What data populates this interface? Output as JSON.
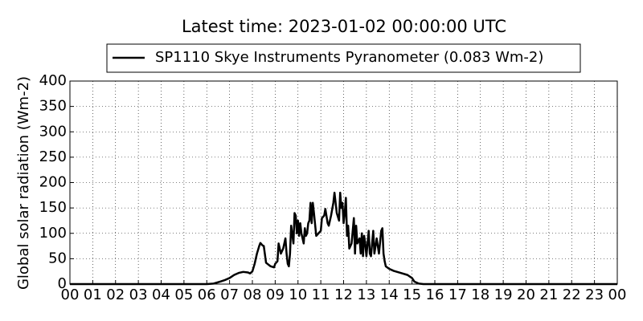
{
  "chart_data": {
    "type": "line",
    "title": "Latest time: 2023-01-02 00:00:00 UTC",
    "ylabel": "Global solar radiation (Wm-2)",
    "legend": "top",
    "grid": true,
    "series": [
      {
        "name": "SP1110 Skye Instruments Pyranometer (0.083 Wm-2)",
        "color": "#000000",
        "x": [
          0,
          6.0,
          6.3,
          6.6,
          6.8,
          7.0,
          7.2,
          7.4,
          7.6,
          7.8,
          7.9,
          8.0,
          8.1,
          8.2,
          8.3,
          8.35,
          8.45,
          8.5,
          8.6,
          8.8,
          8.95,
          9.0,
          9.1,
          9.15,
          9.25,
          9.35,
          9.45,
          9.5,
          9.55,
          9.6,
          9.65,
          9.7,
          9.8,
          9.85,
          9.9,
          9.95,
          10.0,
          10.05,
          10.1,
          10.15,
          10.2,
          10.25,
          10.3,
          10.35,
          10.4,
          10.45,
          10.5,
          10.55,
          10.6,
          10.65,
          10.7,
          10.8,
          10.9,
          11.0,
          11.05,
          11.15,
          11.2,
          11.3,
          11.35,
          11.45,
          11.55,
          11.6,
          11.7,
          11.8,
          11.85,
          11.9,
          11.95,
          12.0,
          12.05,
          12.1,
          12.15,
          12.2,
          12.25,
          12.35,
          12.45,
          12.5,
          12.55,
          12.6,
          12.7,
          12.75,
          12.8,
          12.85,
          12.9,
          12.95,
          13.0,
          13.05,
          13.1,
          13.15,
          13.2,
          13.3,
          13.35,
          13.45,
          13.55,
          13.65,
          13.7,
          13.75,
          13.8,
          13.85,
          14.0,
          14.2,
          14.5,
          14.8,
          15.0,
          15.1,
          15.3,
          15.5,
          24
        ],
        "values": [
          0,
          0,
          1,
          5,
          8,
          12,
          18,
          22,
          24,
          23,
          21,
          25,
          40,
          60,
          75,
          81,
          76,
          75,
          42,
          35,
          33,
          40,
          45,
          80,
          60,
          70,
          90,
          60,
          40,
          35,
          60,
          115,
          80,
          140,
          135,
          100,
          125,
          95,
          120,
          100,
          90,
          80,
          110,
          95,
          100,
          120,
          125,
          160,
          120,
          160,
          140,
          95,
          100,
          105,
          130,
          135,
          148,
          120,
          115,
          135,
          160,
          180,
          140,
          125,
          180,
          150,
          160,
          120,
          140,
          170,
          95,
          115,
          70,
          80,
          130,
          60,
          115,
          80,
          90,
          60,
          100,
          55,
          95,
          80,
          55,
          80,
          105,
          60,
          55,
          105,
          60,
          90,
          60,
          105,
          110,
          60,
          45,
          35,
          30,
          26,
          22,
          18,
          12,
          5,
          1,
          0,
          0
        ]
      }
    ],
    "xlim": [
      0,
      24
    ],
    "xticks": [
      {
        "value": 0,
        "label": "00"
      },
      {
        "value": 1,
        "label": "01"
      },
      {
        "value": 2,
        "label": "02"
      },
      {
        "value": 3,
        "label": "03"
      },
      {
        "value": 4,
        "label": "04"
      },
      {
        "value": 5,
        "label": "05"
      },
      {
        "value": 6,
        "label": "06"
      },
      {
        "value": 7,
        "label": "07"
      },
      {
        "value": 8,
        "label": "08"
      },
      {
        "value": 9,
        "label": "09"
      },
      10,
      11,
      12,
      13,
      14,
      15,
      16,
      17,
      18,
      19,
      20,
      21,
      22,
      23,
      {
        "value": 24,
        "label": "00"
      }
    ],
    "ylim": [
      0,
      400
    ],
    "yticks": [
      0,
      50,
      100,
      150,
      200,
      250,
      300,
      350,
      400
    ]
  }
}
